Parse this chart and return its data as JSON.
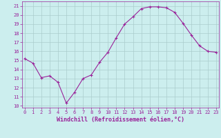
{
  "x": [
    0,
    1,
    2,
    3,
    4,
    5,
    6,
    7,
    8,
    9,
    10,
    11,
    12,
    13,
    14,
    15,
    16,
    17,
    18,
    19,
    20,
    21,
    22,
    23
  ],
  "y": [
    15.2,
    14.7,
    13.1,
    13.3,
    12.6,
    10.3,
    11.5,
    13.0,
    13.4,
    14.8,
    15.9,
    17.5,
    19.0,
    19.8,
    20.7,
    20.9,
    20.9,
    20.8,
    20.3,
    19.1,
    17.8,
    16.6,
    16.0,
    15.9
  ],
  "line_color": "#992299",
  "marker": "+",
  "bg_color": "#cceeee",
  "grid_color": "#aacccc",
  "xlabel": "Windchill (Refroidissement éolien,°C)",
  "xlabel_color": "#992299",
  "tick_color": "#992299",
  "yticks": [
    10,
    11,
    12,
    13,
    14,
    15,
    16,
    17,
    18,
    19,
    20,
    21
  ],
  "xticks": [
    0,
    1,
    2,
    3,
    4,
    5,
    6,
    7,
    8,
    9,
    10,
    11,
    12,
    13,
    14,
    15,
    16,
    17,
    18,
    19,
    20,
    21,
    22,
    23
  ],
  "ylim": [
    9.8,
    21.5
  ],
  "xlim": [
    -0.3,
    23.3
  ],
  "spine_color": "#992299",
  "tick_fontsize": 5.0,
  "xlabel_fontsize": 6.0
}
